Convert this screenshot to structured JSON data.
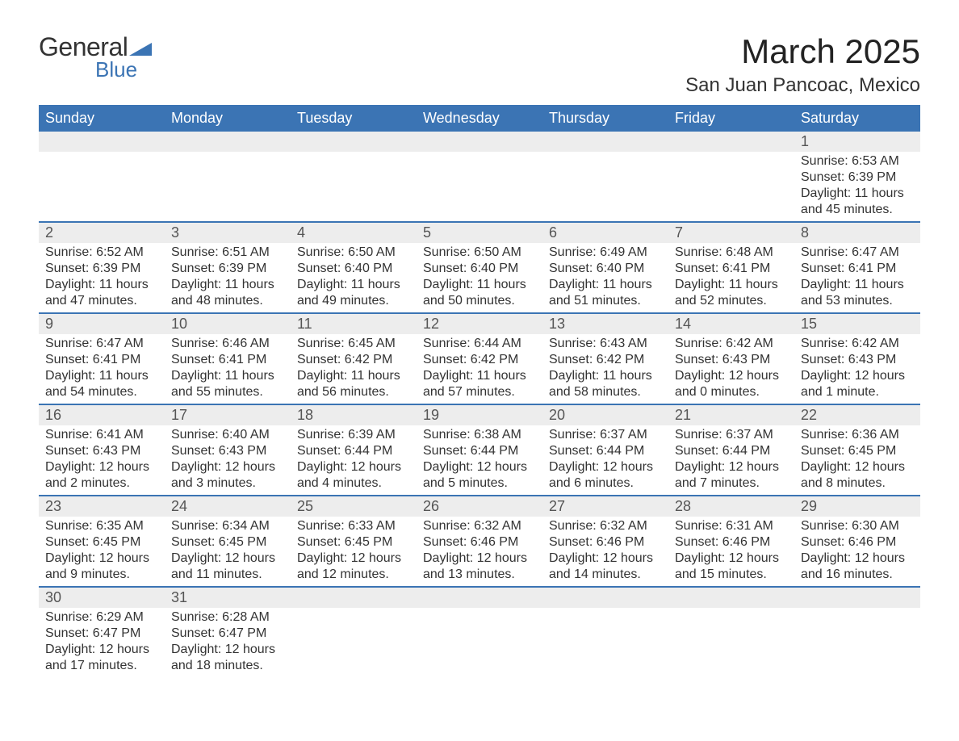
{
  "logo": {
    "text_general": "General",
    "text_blue": "Blue",
    "mark_color": "#3b74b4"
  },
  "title": "March 2025",
  "location": "San Juan Pancoac, Mexico",
  "colors": {
    "header_bg": "#3b74b4",
    "header_text": "#ffffff",
    "row_bg": "#ededed",
    "rule": "#3b74b4",
    "text": "#333333"
  },
  "day_headers": [
    "Sunday",
    "Monday",
    "Tuesday",
    "Wednesday",
    "Thursday",
    "Friday",
    "Saturday"
  ],
  "weeks": [
    [
      null,
      null,
      null,
      null,
      null,
      null,
      {
        "d": "1",
        "sr": "6:53 AM",
        "ss": "6:39 PM",
        "dl": "11 hours and 45 minutes."
      }
    ],
    [
      {
        "d": "2",
        "sr": "6:52 AM",
        "ss": "6:39 PM",
        "dl": "11 hours and 47 minutes."
      },
      {
        "d": "3",
        "sr": "6:51 AM",
        "ss": "6:39 PM",
        "dl": "11 hours and 48 minutes."
      },
      {
        "d": "4",
        "sr": "6:50 AM",
        "ss": "6:40 PM",
        "dl": "11 hours and 49 minutes."
      },
      {
        "d": "5",
        "sr": "6:50 AM",
        "ss": "6:40 PM",
        "dl": "11 hours and 50 minutes."
      },
      {
        "d": "6",
        "sr": "6:49 AM",
        "ss": "6:40 PM",
        "dl": "11 hours and 51 minutes."
      },
      {
        "d": "7",
        "sr": "6:48 AM",
        "ss": "6:41 PM",
        "dl": "11 hours and 52 minutes."
      },
      {
        "d": "8",
        "sr": "6:47 AM",
        "ss": "6:41 PM",
        "dl": "11 hours and 53 minutes."
      }
    ],
    [
      {
        "d": "9",
        "sr": "6:47 AM",
        "ss": "6:41 PM",
        "dl": "11 hours and 54 minutes."
      },
      {
        "d": "10",
        "sr": "6:46 AM",
        "ss": "6:41 PM",
        "dl": "11 hours and 55 minutes."
      },
      {
        "d": "11",
        "sr": "6:45 AM",
        "ss": "6:42 PM",
        "dl": "11 hours and 56 minutes."
      },
      {
        "d": "12",
        "sr": "6:44 AM",
        "ss": "6:42 PM",
        "dl": "11 hours and 57 minutes."
      },
      {
        "d": "13",
        "sr": "6:43 AM",
        "ss": "6:42 PM",
        "dl": "11 hours and 58 minutes."
      },
      {
        "d": "14",
        "sr": "6:42 AM",
        "ss": "6:43 PM",
        "dl": "12 hours and 0 minutes."
      },
      {
        "d": "15",
        "sr": "6:42 AM",
        "ss": "6:43 PM",
        "dl": "12 hours and 1 minute."
      }
    ],
    [
      {
        "d": "16",
        "sr": "6:41 AM",
        "ss": "6:43 PM",
        "dl": "12 hours and 2 minutes."
      },
      {
        "d": "17",
        "sr": "6:40 AM",
        "ss": "6:43 PM",
        "dl": "12 hours and 3 minutes."
      },
      {
        "d": "18",
        "sr": "6:39 AM",
        "ss": "6:44 PM",
        "dl": "12 hours and 4 minutes."
      },
      {
        "d": "19",
        "sr": "6:38 AM",
        "ss": "6:44 PM",
        "dl": "12 hours and 5 minutes."
      },
      {
        "d": "20",
        "sr": "6:37 AM",
        "ss": "6:44 PM",
        "dl": "12 hours and 6 minutes."
      },
      {
        "d": "21",
        "sr": "6:37 AM",
        "ss": "6:44 PM",
        "dl": "12 hours and 7 minutes."
      },
      {
        "d": "22",
        "sr": "6:36 AM",
        "ss": "6:45 PM",
        "dl": "12 hours and 8 minutes."
      }
    ],
    [
      {
        "d": "23",
        "sr": "6:35 AM",
        "ss": "6:45 PM",
        "dl": "12 hours and 9 minutes."
      },
      {
        "d": "24",
        "sr": "6:34 AM",
        "ss": "6:45 PM",
        "dl": "12 hours and 11 minutes."
      },
      {
        "d": "25",
        "sr": "6:33 AM",
        "ss": "6:45 PM",
        "dl": "12 hours and 12 minutes."
      },
      {
        "d": "26",
        "sr": "6:32 AM",
        "ss": "6:46 PM",
        "dl": "12 hours and 13 minutes."
      },
      {
        "d": "27",
        "sr": "6:32 AM",
        "ss": "6:46 PM",
        "dl": "12 hours and 14 minutes."
      },
      {
        "d": "28",
        "sr": "6:31 AM",
        "ss": "6:46 PM",
        "dl": "12 hours and 15 minutes."
      },
      {
        "d": "29",
        "sr": "6:30 AM",
        "ss": "6:46 PM",
        "dl": "12 hours and 16 minutes."
      }
    ],
    [
      {
        "d": "30",
        "sr": "6:29 AM",
        "ss": "6:47 PM",
        "dl": "12 hours and 17 minutes."
      },
      {
        "d": "31",
        "sr": "6:28 AM",
        "ss": "6:47 PM",
        "dl": "12 hours and 18 minutes."
      },
      null,
      null,
      null,
      null,
      null
    ]
  ],
  "labels": {
    "sunrise": "Sunrise: ",
    "sunset": "Sunset: ",
    "daylight": "Daylight: "
  }
}
